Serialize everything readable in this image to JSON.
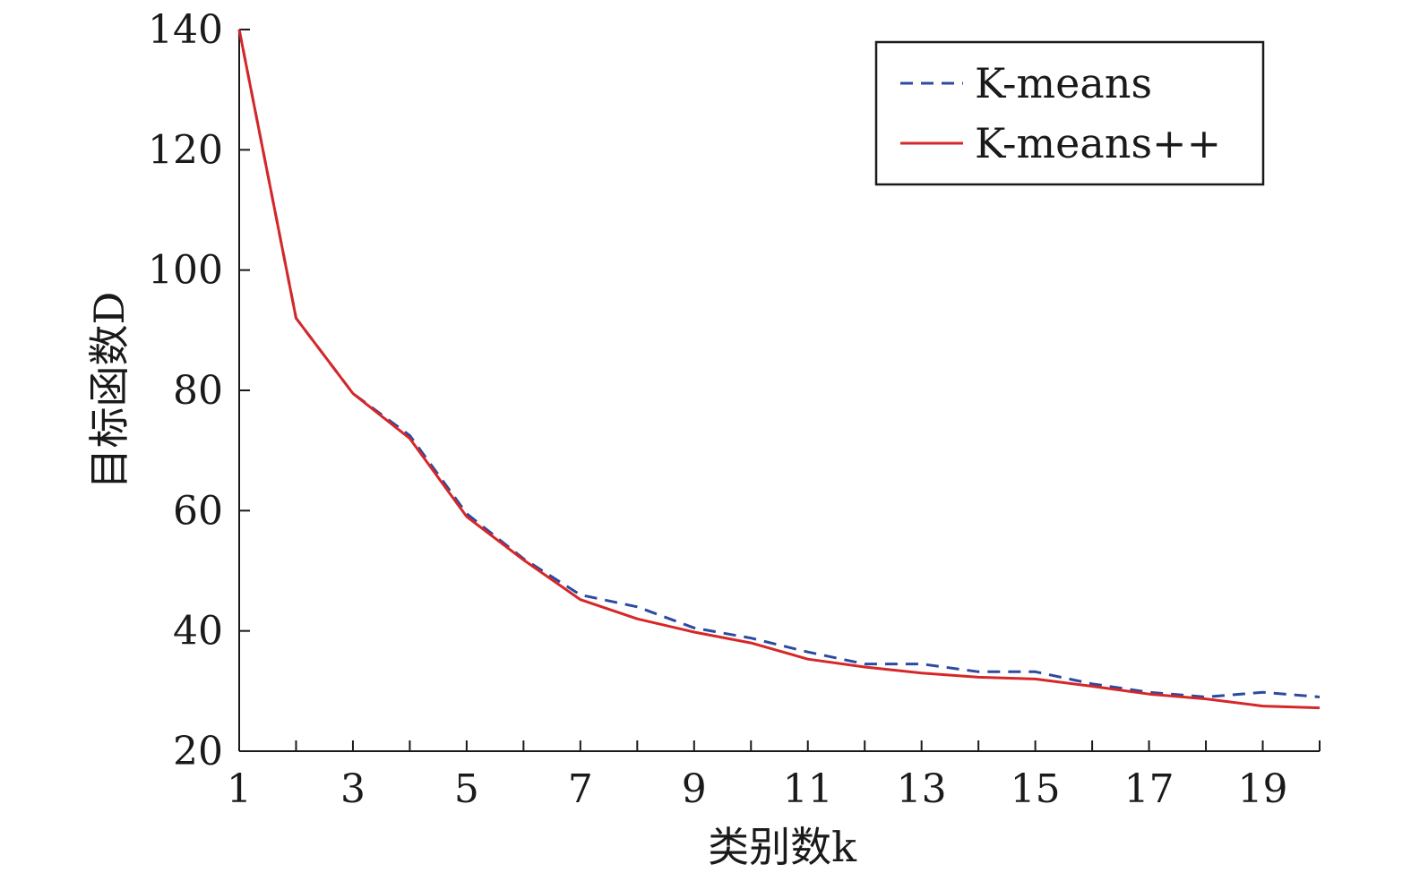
{
  "chart_data": {
    "type": "line",
    "xlabel": "类别数k",
    "ylabel": "目标函数D",
    "xlim": [
      1,
      20
    ],
    "ylim": [
      20,
      140
    ],
    "x_ticks": [
      1,
      3,
      5,
      7,
      9,
      11,
      13,
      15,
      17,
      19
    ],
    "x_ticks_minor": [
      1,
      2,
      3,
      4,
      5,
      6,
      7,
      8,
      9,
      10,
      11,
      12,
      13,
      14,
      15,
      16,
      17,
      18,
      19,
      20
    ],
    "y_ticks": [
      20,
      40,
      60,
      80,
      100,
      120,
      140
    ],
    "grid": false,
    "legend_position": "top-right",
    "x": [
      1,
      2,
      3,
      4,
      5,
      6,
      7,
      8,
      9,
      10,
      11,
      12,
      13,
      14,
      15,
      16,
      17,
      18,
      19,
      20
    ],
    "series": [
      {
        "name": "K-means",
        "color": "#2b4aa0",
        "dash": true,
        "values": [
          140,
          92,
          79.5,
          72.5,
          59.5,
          52,
          46,
          44,
          40.5,
          38.8,
          36.5,
          34.5,
          34.5,
          33.2,
          33.2,
          31.2,
          29.8,
          29,
          29.8,
          29
        ]
      },
      {
        "name": "K-means++",
        "color": "#d62728",
        "dash": false,
        "values": [
          140,
          92,
          79.5,
          72,
          59,
          51.8,
          45.2,
          42,
          39.8,
          38,
          35.3,
          34,
          33,
          32.3,
          32,
          30.8,
          29.5,
          28.7,
          27.5,
          27.2
        ]
      }
    ]
  }
}
